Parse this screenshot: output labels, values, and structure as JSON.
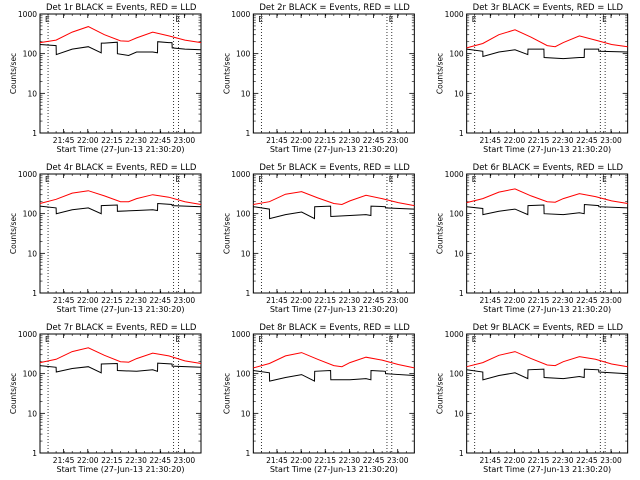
{
  "shared": {
    "xlabel": "Start Time (27-Jun-13 21:30:20)",
    "ylabel": "Counts/sec",
    "x_tick_labels": [
      "21:45",
      "22:00",
      "22:15",
      "22:30",
      "22:45",
      "23:00"
    ],
    "y_tick_labels": [
      "1",
      "10",
      "100",
      "1000"
    ],
    "corner_marks": [
      "E",
      "E"
    ],
    "colors": {
      "events": "#000000",
      "lld": "#ff0000",
      "axes": "#000000",
      "background": "#ffffff"
    }
  },
  "chart_data": [
    {
      "type": "line",
      "title": "Det 1r BLACK = Events, RED = LLD",
      "x_ticks_minutes": [
        14.67,
        29.67,
        44.67,
        59.67,
        74.67,
        89.67
      ],
      "x_range_minutes": [
        0,
        100
      ],
      "y_scale": "log",
      "ylim": [
        1,
        1000
      ],
      "dotted_verticals_minutes": [
        5,
        83,
        86
      ],
      "series": [
        {
          "color": "red",
          "x_minutes": [
            0,
            10,
            20,
            30,
            40,
            50,
            55,
            60,
            70,
            80,
            90,
            100
          ],
          "values": [
            190,
            220,
            350,
            480,
            300,
            210,
            205,
            250,
            350,
            280,
            220,
            190
          ]
        },
        {
          "color": "black",
          "x_minutes": [
            0,
            10,
            10.1,
            20,
            30,
            38,
            38.1,
            40,
            48,
            48.1,
            55,
            60,
            70,
            73,
            73.1,
            80,
            82,
            82.1,
            90,
            100
          ],
          "values": [
            170,
            160,
            95,
            130,
            150,
            105,
            185,
            185,
            195,
            100,
            90,
            110,
            110,
            105,
            200,
            190,
            190,
            140,
            130,
            125
          ]
        }
      ]
    },
    {
      "type": "line",
      "title": "Det 2r BLACK = Events, RED = LLD",
      "x_ticks_minutes": [
        14.67,
        29.67,
        44.67,
        59.67,
        74.67,
        89.67
      ],
      "x_range_minutes": [
        0,
        100
      ],
      "y_scale": "log",
      "ylim": [
        1,
        1000
      ],
      "dotted_verticals_minutes": [
        5,
        83,
        86
      ],
      "series": []
    },
    {
      "type": "line",
      "title": "Det 3r BLACK = Events, RED = LLD",
      "x_ticks_minutes": [
        14.67,
        29.67,
        44.67,
        59.67,
        74.67,
        89.67
      ],
      "x_range_minutes": [
        0,
        100
      ],
      "y_scale": "log",
      "ylim": [
        1,
        1000
      ],
      "dotted_verticals_minutes": [
        5,
        83,
        86
      ],
      "series": [
        {
          "color": "red",
          "x_minutes": [
            0,
            10,
            20,
            30,
            40,
            50,
            55,
            60,
            70,
            80,
            90,
            100
          ],
          "values": [
            140,
            180,
            300,
            400,
            260,
            160,
            150,
            190,
            280,
            220,
            170,
            150
          ]
        },
        {
          "color": "black",
          "x_minutes": [
            0,
            10,
            10.1,
            20,
            30,
            38,
            38.1,
            48,
            48.1,
            60,
            70,
            73,
            73.1,
            82,
            82.1,
            100
          ],
          "values": [
            130,
            115,
            85,
            110,
            125,
            95,
            130,
            130,
            80,
            75,
            80,
            80,
            130,
            130,
            115,
            110
          ]
        }
      ]
    },
    {
      "type": "line",
      "title": "Det 4r BLACK = Events, RED = LLD",
      "x_ticks_minutes": [
        14.67,
        29.67,
        44.67,
        59.67,
        74.67,
        89.67
      ],
      "x_range_minutes": [
        0,
        100
      ],
      "y_scale": "log",
      "ylim": [
        1,
        1000
      ],
      "dotted_verticals_minutes": [
        5,
        83,
        86
      ],
      "series": [
        {
          "color": "red",
          "x_minutes": [
            0,
            10,
            20,
            30,
            40,
            50,
            55,
            60,
            70,
            80,
            90,
            100
          ],
          "values": [
            180,
            230,
            330,
            380,
            280,
            200,
            200,
            240,
            300,
            260,
            200,
            170
          ]
        },
        {
          "color": "black",
          "x_minutes": [
            0,
            10,
            10.1,
            20,
            30,
            38,
            38.1,
            48,
            48.1,
            60,
            70,
            73,
            73.1,
            82,
            82.1,
            100
          ],
          "values": [
            155,
            140,
            100,
            125,
            140,
            100,
            160,
            165,
            115,
            120,
            125,
            120,
            180,
            170,
            160,
            150
          ]
        }
      ]
    },
    {
      "type": "line",
      "title": "Det 5r BLACK = Events, RED = LLD",
      "x_ticks_minutes": [
        14.67,
        29.67,
        44.67,
        59.67,
        74.67,
        89.67
      ],
      "x_range_minutes": [
        0,
        100
      ],
      "y_scale": "log",
      "ylim": [
        1,
        1000
      ],
      "dotted_verticals_minutes": [
        5,
        83,
        86
      ],
      "series": [
        {
          "color": "red",
          "x_minutes": [
            0,
            10,
            20,
            30,
            40,
            50,
            55,
            60,
            70,
            80,
            90,
            100
          ],
          "values": [
            170,
            200,
            310,
            360,
            250,
            180,
            170,
            210,
            290,
            240,
            190,
            160
          ]
        },
        {
          "color": "black",
          "x_minutes": [
            0,
            10,
            10.1,
            20,
            30,
            38,
            38.1,
            48,
            48.1,
            60,
            70,
            73,
            73.1,
            82,
            82.1,
            100
          ],
          "values": [
            150,
            130,
            75,
            95,
            110,
            75,
            150,
            155,
            85,
            90,
            95,
            90,
            155,
            150,
            140,
            130
          ]
        }
      ]
    },
    {
      "type": "line",
      "title": "Det 6r BLACK = Events, RED = LLD",
      "x_ticks_minutes": [
        14.67,
        29.67,
        44.67,
        59.67,
        74.67,
        89.67
      ],
      "x_range_minutes": [
        0,
        100
      ],
      "y_scale": "log",
      "ylim": [
        1,
        1000
      ],
      "dotted_verticals_minutes": [
        5,
        83,
        86
      ],
      "series": [
        {
          "color": "red",
          "x_minutes": [
            0,
            10,
            20,
            30,
            40,
            50,
            55,
            60,
            70,
            80,
            90,
            100
          ],
          "values": [
            190,
            240,
            350,
            420,
            280,
            200,
            195,
            240,
            320,
            270,
            210,
            180
          ]
        },
        {
          "color": "black",
          "x_minutes": [
            0,
            10,
            10.1,
            20,
            30,
            38,
            38.1,
            48,
            48.1,
            60,
            70,
            73,
            73.1,
            82,
            82.1,
            100
          ],
          "values": [
            150,
            135,
            95,
            115,
            130,
            95,
            160,
            165,
            100,
            95,
            105,
            100,
            170,
            160,
            150,
            140
          ]
        }
      ]
    },
    {
      "type": "line",
      "title": "Det 7r BLACK = Events, RED = LLD",
      "x_ticks_minutes": [
        14.67,
        29.67,
        44.67,
        59.67,
        74.67,
        89.67
      ],
      "x_range_minutes": [
        0,
        100
      ],
      "y_scale": "log",
      "ylim": [
        1,
        1000
      ],
      "dotted_verticals_minutes": [
        5,
        83,
        86
      ],
      "series": [
        {
          "color": "red",
          "x_minutes": [
            0,
            10,
            20,
            30,
            40,
            50,
            55,
            60,
            70,
            80,
            90,
            100
          ],
          "values": [
            190,
            230,
            360,
            450,
            290,
            200,
            195,
            240,
            330,
            280,
            210,
            180
          ]
        },
        {
          "color": "black",
          "x_minutes": [
            0,
            10,
            10.1,
            20,
            30,
            38,
            38.1,
            48,
            48.1,
            60,
            70,
            73,
            73.1,
            82,
            82.1,
            100
          ],
          "values": [
            160,
            145,
            110,
            135,
            150,
            105,
            175,
            180,
            120,
            115,
            125,
            115,
            185,
            175,
            155,
            145
          ]
        }
      ]
    },
    {
      "type": "line",
      "title": "Det 8r BLACK = Events, RED = LLD",
      "x_ticks_minutes": [
        14.67,
        29.67,
        44.67,
        59.67,
        74.67,
        89.67
      ],
      "x_range_minutes": [
        0,
        100
      ],
      "y_scale": "log",
      "ylim": [
        1,
        1000
      ],
      "dotted_verticals_minutes": [
        5,
        83,
        86
      ],
      "series": [
        {
          "color": "red",
          "x_minutes": [
            0,
            10,
            20,
            30,
            40,
            50,
            55,
            60,
            70,
            80,
            90,
            100
          ],
          "values": [
            140,
            180,
            280,
            340,
            230,
            160,
            150,
            190,
            260,
            220,
            170,
            140
          ]
        },
        {
          "color": "black",
          "x_minutes": [
            0,
            10,
            10.1,
            20,
            30,
            38,
            38.1,
            48,
            48.1,
            60,
            70,
            73,
            73.1,
            82,
            82.1,
            100
          ],
          "values": [
            120,
            105,
            65,
            80,
            95,
            65,
            115,
            120,
            70,
            70,
            75,
            70,
            120,
            115,
            100,
            90
          ]
        }
      ]
    },
    {
      "type": "line",
      "title": "Det 9r BLACK = Events, RED = LLD",
      "x_ticks_minutes": [
        14.67,
        29.67,
        44.67,
        59.67,
        74.67,
        89.67
      ],
      "x_range_minutes": [
        0,
        100
      ],
      "y_scale": "log",
      "ylim": [
        1,
        1000
      ],
      "dotted_verticals_minutes": [
        5,
        83,
        86
      ],
      "series": [
        {
          "color": "red",
          "x_minutes": [
            0,
            10,
            20,
            30,
            40,
            50,
            55,
            60,
            70,
            80,
            90,
            100
          ],
          "values": [
            150,
            190,
            290,
            360,
            240,
            165,
            160,
            200,
            270,
            230,
            175,
            150
          ]
        },
        {
          "color": "black",
          "x_minutes": [
            0,
            10,
            10.1,
            20,
            30,
            38,
            38.1,
            48,
            48.1,
            60,
            70,
            73,
            73.1,
            82,
            82.1,
            100
          ],
          "values": [
            125,
            110,
            70,
            90,
            105,
            75,
            125,
            130,
            80,
            75,
            85,
            80,
            130,
            125,
            110,
            100
          ]
        }
      ]
    }
  ]
}
